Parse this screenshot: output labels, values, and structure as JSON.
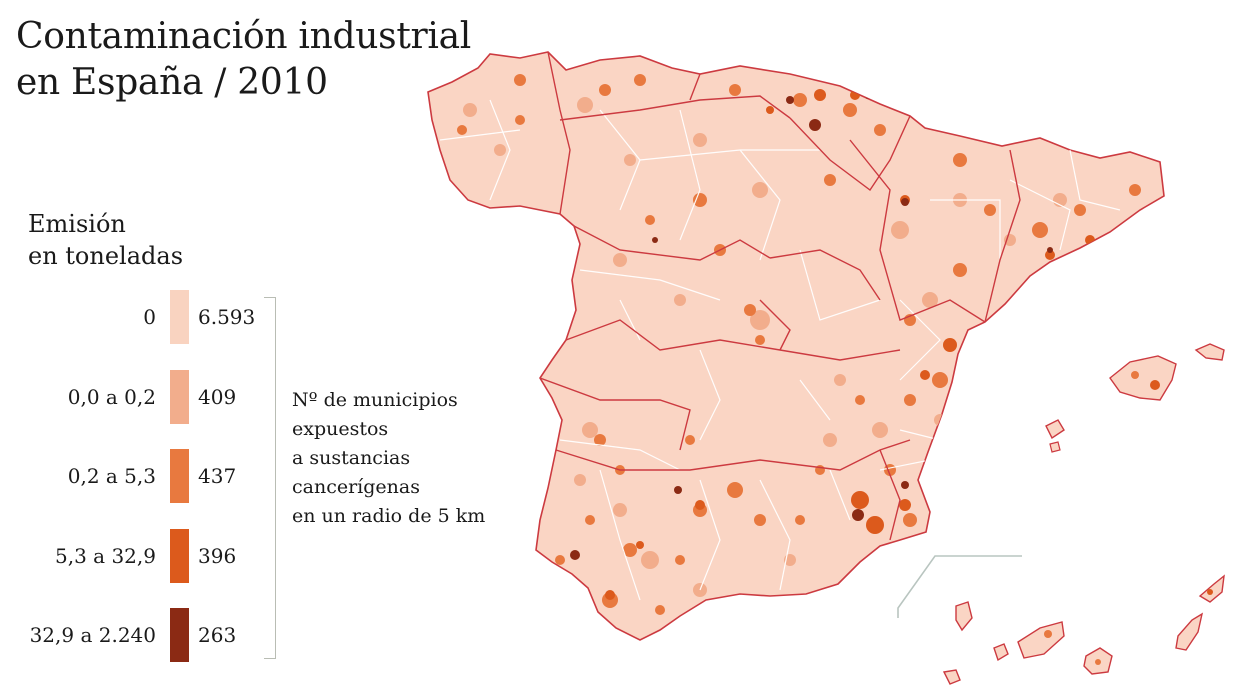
{
  "title": {
    "line1": "Contaminación industrial",
    "line2": "en España / 2010"
  },
  "legend": {
    "title_line1": "Emisión",
    "title_line2": "en toneladas",
    "rows": [
      {
        "range": "0",
        "count": "6.593",
        "color": "#f9d3c0"
      },
      {
        "range": "0,0 a 0,2",
        "count": "409",
        "color": "#f2ad8c"
      },
      {
        "range": "0,2 a 5,3",
        "count": "437",
        "color": "#e8793f"
      },
      {
        "range": "5,3 a 32,9",
        "count": "396",
        "color": "#dc5a1c"
      },
      {
        "range": "32,9 a 2.240",
        "count": "263",
        "color": "#8b2a14"
      }
    ],
    "note_lines": [
      "Nº de municipios",
      "expuestos",
      "a sustancias",
      "cancerígenas",
      "en un radio de 5 km"
    ]
  },
  "map": {
    "base_color": "#fad5c4",
    "border_color": "#cc3a40",
    "internal_border_color": "#ffffff",
    "inset_frame_color": "#b9c5c0"
  }
}
